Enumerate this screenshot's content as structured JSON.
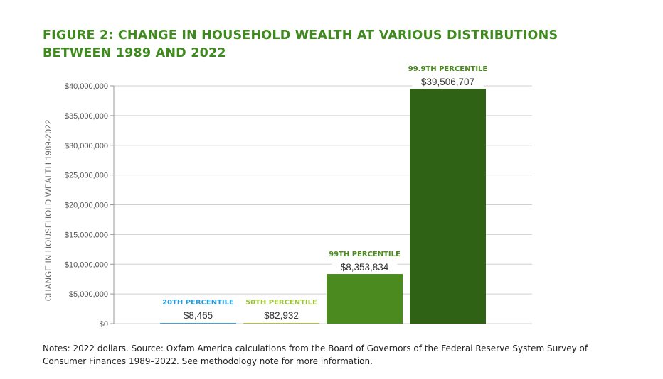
{
  "title": "FIGURE 2: CHANGE IN HOUSEHOLD WEALTH AT VARIOUS DISTRIBUTIONS BETWEEN 1989 AND 2022",
  "notes": "Notes: 2022 dollars. Source: Oxfam America calculations from the Board of Governors of the Federal Reserve System Survey of Consumer Finances 1989–2022. See methodology note for more information.",
  "chart_data": {
    "type": "bar",
    "title": "FIGURE 2: CHANGE IN HOUSEHOLD WEALTH AT VARIOUS DISTRIBUTIONS BETWEEN 1989 AND 2022",
    "ylabel": "CHANGE IN HOUSEHOLD WEALTH 1989-2022",
    "xlabel": "",
    "ylim": [
      0,
      40000000
    ],
    "yticks": [
      0,
      5000000,
      10000000,
      15000000,
      20000000,
      25000000,
      30000000,
      35000000,
      40000000
    ],
    "ytick_labels": [
      "$0",
      "$5,000,000",
      "$10,000,000",
      "$15,000,000",
      "$20,000,000",
      "$25,000,000",
      "$30,000,000",
      "$35,000,000",
      "$40,000,000"
    ],
    "grid": true,
    "categories": [
      "20TH PERCENTILE",
      "50TH PERCENTILE",
      "99TH PERCENTILE",
      "99.9TH PERCENTILE"
    ],
    "values": [
      8465,
      82932,
      8353834,
      39506707
    ],
    "value_labels": [
      "$8,465",
      "$82,932",
      "$8,353,834",
      "$39,506,707"
    ],
    "bar_colors": [
      "#3aa6d8",
      "#a8c83a",
      "#4a8a1f",
      "#2f6215"
    ],
    "label_colors": [
      "#2a9ad4",
      "#9cc23a",
      "#4a8a1f",
      "#4a8a1f"
    ]
  }
}
